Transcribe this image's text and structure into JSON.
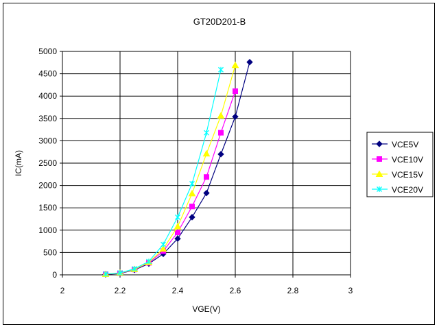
{
  "chart_data": {
    "type": "line",
    "title": "GT20D201-B",
    "xlabel": "VGE(V)",
    "ylabel": "IC(mA)",
    "xlim": [
      2,
      3
    ],
    "ylim": [
      0,
      5000
    ],
    "x_ticks": [
      "2",
      "2.2",
      "2.4",
      "2.6",
      "2.8",
      "3"
    ],
    "y_ticks": [
      "0",
      "500",
      "1000",
      "1500",
      "2000",
      "2500",
      "3000",
      "3500",
      "4000",
      "4500",
      "5000"
    ],
    "grid": true,
    "legend_position": "right",
    "series": [
      {
        "name": "VCE5V",
        "color": "#000080",
        "marker": "diamond",
        "x": [
          2.15,
          2.2,
          2.25,
          2.3,
          2.35,
          2.4,
          2.45,
          2.5,
          2.55,
          2.6,
          2.65
        ],
        "values": [
          10,
          30,
          110,
          250,
          470,
          810,
          1290,
          1830,
          2700,
          3540,
          4760
        ]
      },
      {
        "name": "VCE10V",
        "color": "#ff00ff",
        "marker": "square",
        "x": [
          2.15,
          2.2,
          2.25,
          2.3,
          2.35,
          2.4,
          2.45,
          2.5,
          2.55,
          2.6
        ],
        "values": [
          15,
          35,
          120,
          270,
          530,
          950,
          1530,
          2190,
          3180,
          4110
        ]
      },
      {
        "name": "VCE15V",
        "color": "#ffff00",
        "marker": "triangle",
        "x": [
          2.15,
          2.2,
          2.25,
          2.3,
          2.35,
          2.4,
          2.45,
          2.5,
          2.55,
          2.6
        ],
        "values": [
          15,
          40,
          125,
          280,
          580,
          1080,
          1820,
          2710,
          3560,
          4690
        ]
      },
      {
        "name": "VCE20V",
        "color": "#00ffff",
        "marker": "star",
        "x": [
          2.15,
          2.2,
          2.25,
          2.3,
          2.35,
          2.4,
          2.45,
          2.5,
          2.55
        ],
        "values": [
          20,
          45,
          135,
          300,
          680,
          1290,
          2040,
          3180,
          4590
        ]
      }
    ]
  }
}
